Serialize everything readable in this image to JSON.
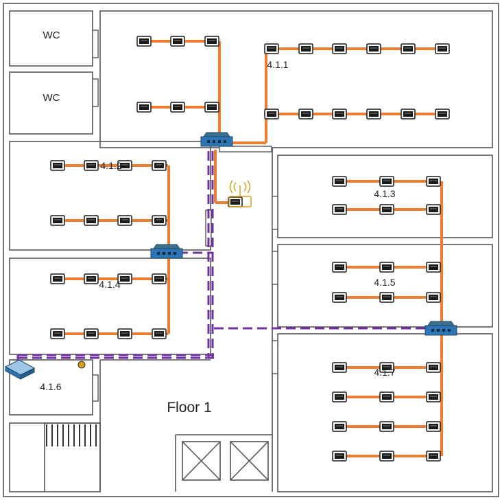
{
  "floor_label": "Floor 1",
  "rooms": {
    "wc1": "WC",
    "wc2": "WC",
    "r411": "4.1.1",
    "r412": "4.1.2",
    "r413": "4.1.3",
    "r414": "4.1.4",
    "r415": "4.1.5",
    "r416": "4.1.6",
    "r417": "4.1.7"
  },
  "colors": {
    "wall": "#555555",
    "cable": "#ed7d31",
    "backbone": "#7030a0",
    "switch": "#2e75b6",
    "port": "#1a1a1a",
    "wifi": "#d4a017"
  }
}
